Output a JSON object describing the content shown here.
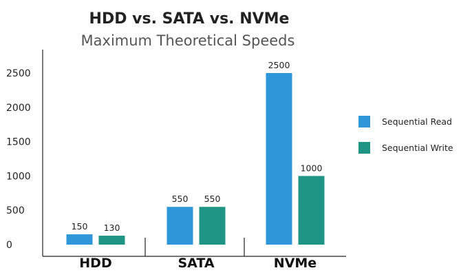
{
  "chart_data": {
    "type": "bar",
    "title": "HDD vs. SATA vs. NVMe",
    "subtitle": "Maximum Theoretical Speeds",
    "categories": [
      "HDD",
      "SATA",
      "NVMe"
    ],
    "series": [
      {
        "name": "Sequential Read",
        "values": [
          150,
          550,
          2500
        ],
        "color": "#2f97d9"
      },
      {
        "name": "Sequential Write",
        "values": [
          130,
          550,
          1000
        ],
        "color": "#1e9584"
      }
    ],
    "yticks": [
      "0",
      "500",
      "1000",
      "1500",
      "2000",
      "2500"
    ],
    "ylim": [
      0,
      2500
    ],
    "data_labels": [
      [
        "150",
        "550",
        "2500"
      ],
      [
        "130",
        "550",
        "1000"
      ]
    ],
    "legend_position": "right",
    "grid": false
  }
}
